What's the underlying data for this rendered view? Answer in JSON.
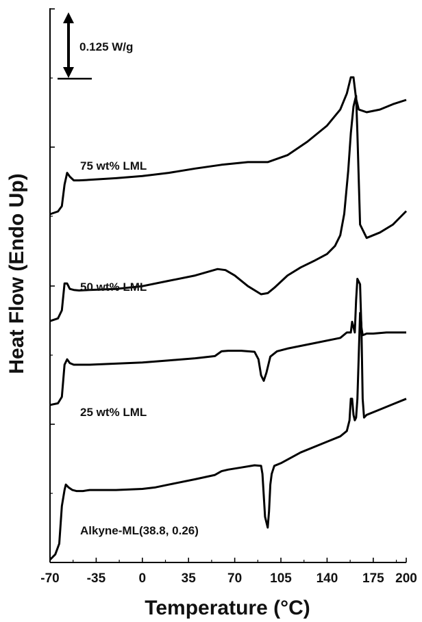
{
  "chart_data": {
    "type": "line",
    "title": "",
    "xlabel": "Temperature (°C)",
    "ylabel": "Heat Flow (Endo Up)",
    "xlim": [
      -70,
      200
    ],
    "xticks": [
      "-70",
      "-35",
      "0",
      "35",
      "70",
      "105",
      "140",
      "175",
      "200"
    ],
    "y_ticks_labeled": false,
    "scale_bar": {
      "label": "0.125 W/g",
      "value": 0.125,
      "unit": "W/g"
    },
    "grid": false,
    "legend": "none",
    "colors": {
      "line": "#000000",
      "axis": "#000000"
    },
    "series": [
      {
        "name": "75 wt% LML",
        "x": [
          -70,
          -64,
          -61,
          -59,
          -57,
          -55,
          -52,
          -48,
          -40,
          -20,
          0,
          20,
          40,
          60,
          80,
          95,
          110,
          125,
          140,
          150,
          155,
          158,
          160,
          162,
          164,
          170,
          180,
          190,
          200
        ],
        "y": [
          -0.065,
          -0.06,
          -0.05,
          -0.01,
          0.012,
          0.005,
          -0.002,
          -0.002,
          -0.001,
          0.002,
          0.006,
          0.012,
          0.02,
          0.027,
          0.032,
          0.032,
          0.045,
          0.07,
          0.1,
          0.13,
          0.16,
          0.19,
          0.19,
          0.15,
          0.13,
          0.125,
          0.13,
          0.14,
          0.148
        ]
      },
      {
        "name": "50 wt% LML",
        "x": [
          -70,
          -64,
          -61,
          -59,
          -57,
          -55,
          -52,
          -48,
          -40,
          -20,
          0,
          20,
          40,
          50,
          57,
          63,
          70,
          80,
          90,
          95,
          100,
          110,
          120,
          130,
          140,
          146,
          150,
          153,
          156,
          158,
          160,
          162,
          163,
          165,
          170,
          180,
          190,
          200
        ],
        "y": [
          -0.05,
          -0.045,
          -0.03,
          0.02,
          0.02,
          0.01,
          0.008,
          0.007,
          0.008,
          0.01,
          0.015,
          0.025,
          0.035,
          0.042,
          0.047,
          0.045,
          0.035,
          0.015,
          0.0,
          0.002,
          0.012,
          0.035,
          0.05,
          0.062,
          0.075,
          0.09,
          0.11,
          0.15,
          0.23,
          0.3,
          0.35,
          0.37,
          0.3,
          0.13,
          0.105,
          0.115,
          0.13,
          0.155
        ]
      },
      {
        "name": "25 wt% LML",
        "x": [
          -70,
          -64,
          -61,
          -59,
          -57,
          -55,
          -52,
          -48,
          -40,
          -20,
          0,
          20,
          40,
          55,
          60,
          65,
          75,
          85,
          88,
          90,
          92,
          94,
          97,
          102,
          110,
          130,
          150,
          155,
          158,
          159,
          160,
          161,
          162,
          163,
          165,
          166,
          167,
          168,
          170,
          175,
          185,
          200
        ],
        "y": [
          -0.015,
          -0.012,
          0.0,
          0.06,
          0.07,
          0.063,
          0.06,
          0.06,
          0.06,
          0.062,
          0.064,
          0.068,
          0.072,
          0.076,
          0.085,
          0.086,
          0.086,
          0.084,
          0.07,
          0.04,
          0.03,
          0.045,
          0.075,
          0.085,
          0.09,
          0.1,
          0.11,
          0.12,
          0.12,
          0.14,
          0.13,
          0.12,
          0.18,
          0.22,
          0.21,
          0.13,
          0.115,
          0.116,
          0.118,
          0.118,
          0.12,
          0.12
        ]
      },
      {
        "name": "Alkyne-ML(38.8, 0.26)",
        "x": [
          -70,
          -66,
          -63,
          -61,
          -59,
          -58,
          -56,
          -53,
          -50,
          -45,
          -40,
          -20,
          0,
          10,
          20,
          40,
          55,
          60,
          65,
          75,
          85,
          90,
          91,
          93,
          95,
          96,
          97,
          98,
          100,
          105,
          120,
          140,
          150,
          155,
          157,
          158,
          159,
          160,
          161,
          162,
          163,
          165,
          166,
          167,
          168,
          170,
          180,
          190,
          200
        ],
        "y": [
          0.0,
          0.01,
          0.03,
          0.1,
          0.13,
          0.14,
          0.135,
          0.13,
          0.128,
          0.128,
          0.13,
          0.13,
          0.132,
          0.135,
          0.14,
          0.15,
          0.158,
          0.165,
          0.168,
          0.172,
          0.176,
          0.175,
          0.16,
          0.08,
          0.06,
          0.09,
          0.14,
          0.16,
          0.175,
          0.18,
          0.2,
          0.22,
          0.23,
          0.24,
          0.26,
          0.3,
          0.3,
          0.27,
          0.26,
          0.265,
          0.3,
          0.46,
          0.44,
          0.3,
          0.265,
          0.27,
          0.28,
          0.29,
          0.3
        ]
      }
    ]
  }
}
